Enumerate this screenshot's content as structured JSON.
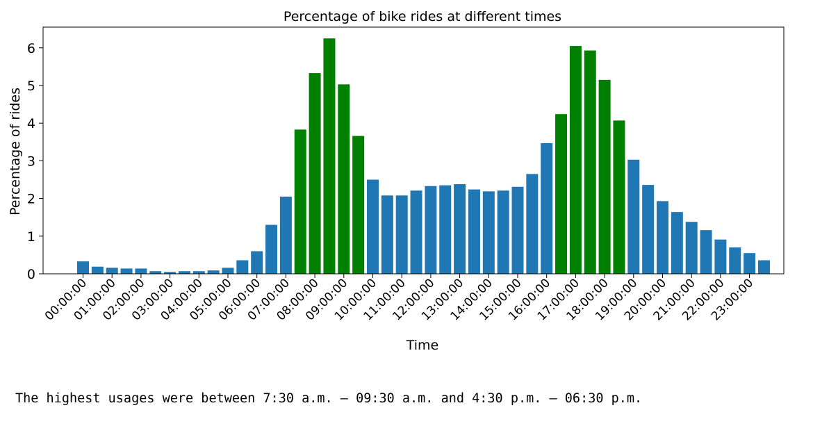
{
  "chart_data": {
    "type": "bar",
    "title": "Percentage of bike rides at different times",
    "xlabel": "Time",
    "ylabel": "Percentage of rides",
    "ylim": [
      0,
      6.55
    ],
    "yticks": [
      0,
      1,
      2,
      3,
      4,
      5,
      6
    ],
    "grid": false,
    "colors": {
      "normal": "#1f77b4",
      "peak": "#008000"
    },
    "xtick_labels": [
      "00:00:00",
      "01:00:00",
      "02:00:00",
      "03:00:00",
      "04:00:00",
      "05:00:00",
      "06:00:00",
      "07:00:00",
      "08:00:00",
      "09:00:00",
      "10:00:00",
      "11:00:00",
      "12:00:00",
      "13:00:00",
      "14:00:00",
      "15:00:00",
      "16:00:00",
      "17:00:00",
      "18:00:00",
      "19:00:00",
      "20:00:00",
      "21:00:00",
      "22:00:00",
      "23:00:00"
    ],
    "categories": [
      "00:00:00",
      "00:30:00",
      "01:00:00",
      "01:30:00",
      "02:00:00",
      "02:30:00",
      "03:00:00",
      "03:30:00",
      "04:00:00",
      "04:30:00",
      "05:00:00",
      "05:30:00",
      "06:00:00",
      "06:30:00",
      "07:00:00",
      "07:30:00",
      "08:00:00",
      "08:30:00",
      "09:00:00",
      "09:30:00",
      "10:00:00",
      "10:30:00",
      "11:00:00",
      "11:30:00",
      "12:00:00",
      "12:30:00",
      "13:00:00",
      "13:30:00",
      "14:00:00",
      "14:30:00",
      "15:00:00",
      "15:30:00",
      "16:00:00",
      "16:30:00",
      "17:00:00",
      "17:30:00",
      "18:00:00",
      "18:30:00",
      "19:00:00",
      "19:30:00",
      "20:00:00",
      "20:30:00",
      "21:00:00",
      "21:30:00",
      "22:00:00",
      "22:30:00",
      "23:00:00",
      "23:30:00"
    ],
    "values": [
      0.33,
      0.19,
      0.16,
      0.14,
      0.14,
      0.07,
      0.05,
      0.07,
      0.07,
      0.09,
      0.16,
      0.36,
      0.6,
      1.3,
      2.05,
      3.83,
      5.33,
      6.25,
      5.03,
      3.66,
      2.5,
      2.08,
      2.08,
      2.21,
      2.33,
      2.35,
      2.38,
      2.24,
      2.19,
      2.21,
      2.31,
      2.65,
      3.47,
      4.24,
      6.05,
      5.93,
      5.15,
      4.07,
      3.03,
      2.36,
      1.93,
      1.64,
      1.38,
      1.16,
      0.91,
      0.7,
      0.55,
      0.36
    ],
    "highlighted": [
      false,
      false,
      false,
      false,
      false,
      false,
      false,
      false,
      false,
      false,
      false,
      false,
      false,
      false,
      false,
      true,
      true,
      true,
      true,
      true,
      false,
      false,
      false,
      false,
      false,
      false,
      false,
      false,
      false,
      false,
      false,
      false,
      false,
      true,
      true,
      true,
      true,
      true,
      false,
      false,
      false,
      false,
      false,
      false,
      false,
      false,
      false,
      false
    ]
  },
  "output_text": "The highest usages were between 7:30 a.m. – 09:30 a.m. and 4:30 p.m. – 06:30 p.m."
}
